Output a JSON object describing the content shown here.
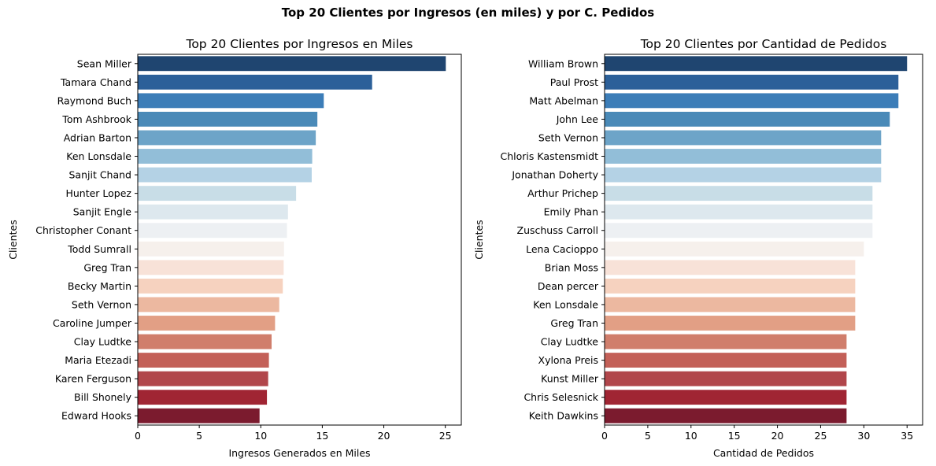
{
  "suptitle": "Top 20 Clientes por Ingresos (en miles) y por C. Pedidos",
  "chart_data": [
    {
      "type": "bar",
      "orientation": "horizontal",
      "title": "Top 20 Clientes por Ingresos en Miles",
      "xlabel": "Ingresos Generados en Miles",
      "ylabel": "Clientes",
      "xlim": [
        0,
        26.3
      ],
      "xticks": [
        0,
        5,
        10,
        15,
        20,
        25
      ],
      "categories": [
        "Sean Miller",
        "Tamara Chand",
        "Raymond Buch",
        "Tom Ashbrook",
        "Adrian Barton",
        "Ken Lonsdale",
        "Sanjit Chand",
        "Hunter Lopez",
        "Sanjit Engle",
        "Christopher Conant",
        "Todd Sumrall",
        "Greg Tran",
        "Becky Martin",
        "Seth Vernon",
        "Caroline Jumper",
        "Clay Ludtke",
        "Maria Etezadi",
        "Karen Ferguson",
        "Bill Shonely",
        "Edward Hooks"
      ],
      "values": [
        25.04,
        19.05,
        15.12,
        14.6,
        14.47,
        14.18,
        14.14,
        12.87,
        12.21,
        12.13,
        11.89,
        11.86,
        11.79,
        11.5,
        11.16,
        10.88,
        10.66,
        10.6,
        10.5,
        9.9
      ],
      "palette": "RdBu_r",
      "grid": false
    },
    {
      "type": "bar",
      "orientation": "horizontal",
      "title": "Top 20 Clientes por Cantidad de Pedidos",
      "xlabel": "Cantidad de Pedidos",
      "ylabel": "Clientes",
      "xlim": [
        0,
        36.8
      ],
      "xticks": [
        0,
        5,
        10,
        15,
        20,
        25,
        30,
        35
      ],
      "categories": [
        "William Brown",
        "Paul Prost",
        "Matt Abelman",
        "John Lee",
        "Seth Vernon",
        "Chloris Kastensmidt",
        "Jonathan Doherty",
        "Arthur Prichep",
        "Emily Phan",
        "Zuschuss Carroll",
        "Lena Cacioppo",
        "Brian Moss",
        "Dean percer",
        "Ken Lonsdale",
        "Greg Tran",
        "Clay Ludtke",
        "Xylona Preis",
        "Kunst Miller",
        "Chris Selesnick",
        "Keith Dawkins"
      ],
      "values": [
        35,
        34,
        34,
        33,
        32,
        32,
        32,
        31,
        31,
        31,
        30,
        29,
        29,
        29,
        29,
        28,
        28,
        28,
        28,
        28
      ],
      "palette": "RdBu_r",
      "grid": false
    }
  ],
  "colors": [
    "#1f4570",
    "#2c6099",
    "#3c7db8",
    "#4a8ab8",
    "#6da4c8",
    "#92bed8",
    "#b4d2e5",
    "#c8dde7",
    "#dde8ee",
    "#edf0f3",
    "#f6f0ec",
    "#f8e2d8",
    "#f6d2bf",
    "#ecb8a0",
    "#e29f85",
    "#d07e6c",
    "#c36058",
    "#b1464b",
    "#a02533",
    "#7b1b2e"
  ]
}
